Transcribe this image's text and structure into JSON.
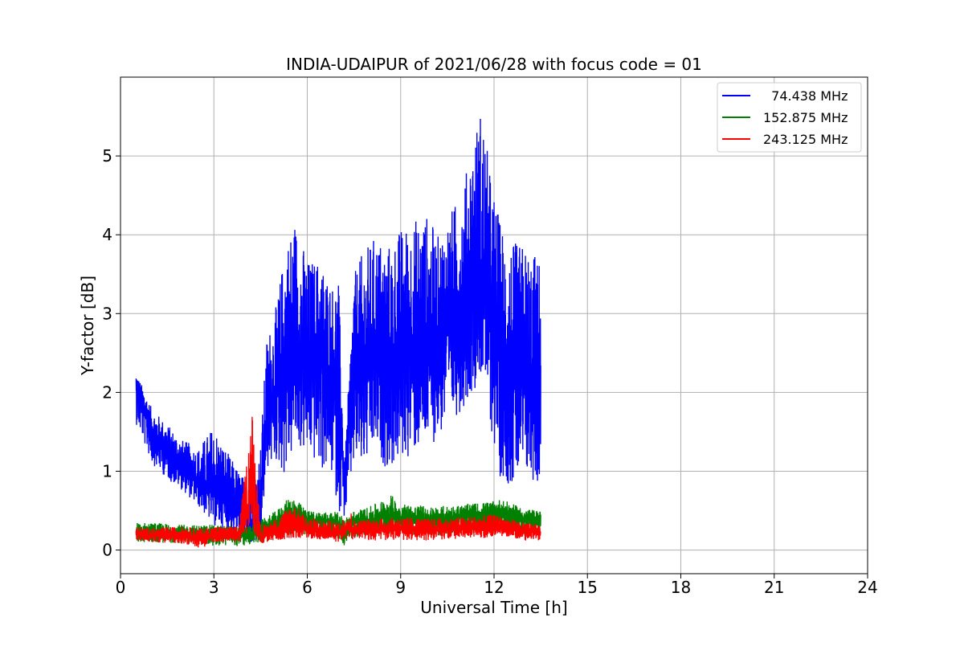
{
  "chart_data": {
    "type": "line",
    "title": "INDIA-UDAIPUR of 2021/06/28 with focus code = 01",
    "xlabel": "Universal Time [h]",
    "ylabel": "Y-factor [dB]",
    "xlim": [
      0,
      24
    ],
    "ylim": [
      -0.3,
      6.0
    ],
    "xticks": [
      0,
      3,
      6,
      9,
      12,
      15,
      18,
      21,
      24
    ],
    "yticks": [
      0,
      1,
      2,
      3,
      4,
      5
    ],
    "grid": true,
    "legend_position": "top-right",
    "series": [
      {
        "name": "  74.438 MHz",
        "color": "#0000ff",
        "x": [
          0.5,
          0.8,
          1.0,
          1.5,
          2.0,
          2.5,
          3.0,
          3.5,
          4.0,
          4.3,
          4.5,
          4.7,
          5.0,
          5.3,
          5.6,
          6.0,
          6.4,
          6.8,
          7.0,
          7.2,
          7.5,
          7.8,
          8.2,
          8.6,
          9.0,
          9.4,
          9.8,
          10.2,
          10.6,
          11.0,
          11.3,
          11.6,
          11.9,
          12.2,
          12.6,
          13.0,
          13.5
        ],
        "y": [
          2.1,
          1.75,
          1.5,
          1.25,
          1.05,
          0.85,
          0.75,
          0.6,
          0.45,
          0.35,
          0.4,
          1.8,
          2.0,
          2.4,
          2.5,
          2.3,
          2.5,
          2.2,
          2.1,
          0.8,
          2.4,
          2.3,
          2.6,
          2.2,
          2.5,
          2.6,
          2.6,
          2.6,
          2.9,
          3.0,
          3.4,
          3.5,
          3.2,
          2.4,
          2.2,
          2.1,
          2.0
        ],
        "y_low": [
          1.6,
          1.3,
          1.1,
          0.9,
          0.75,
          0.55,
          0.3,
          0.25,
          0.1,
          0.05,
          0.15,
          1.0,
          1.1,
          0.9,
          1.3,
          1.2,
          1.0,
          0.9,
          0.5,
          0.4,
          1.0,
          1.0,
          1.2,
          1.0,
          1.1,
          1.2,
          1.3,
          1.4,
          1.6,
          1.8,
          2.0,
          2.2,
          1.5,
          0.9,
          0.8,
          0.9,
          0.8
        ],
        "y_high": [
          2.25,
          2.0,
          1.8,
          1.6,
          1.4,
          1.3,
          1.6,
          1.2,
          0.9,
          1.0,
          1.4,
          2.7,
          3.1,
          3.9,
          4.25,
          3.7,
          3.7,
          3.4,
          3.5,
          1.1,
          3.5,
          3.8,
          4.0,
          3.9,
          4.1,
          4.2,
          4.3,
          4.0,
          4.3,
          4.6,
          5.2,
          5.7,
          4.7,
          4.2,
          3.9,
          3.9,
          3.7
        ]
      },
      {
        "name": "152.875 MHz",
        "color": "#008000",
        "x": [
          0.5,
          1.0,
          2.0,
          3.0,
          4.0,
          4.3,
          4.6,
          5.0,
          5.5,
          6.0,
          7.0,
          7.2,
          7.5,
          8.0,
          8.7,
          9.0,
          10.0,
          11.0,
          12.0,
          12.2,
          13.0,
          13.5
        ],
        "y": [
          0.22,
          0.22,
          0.2,
          0.2,
          0.2,
          0.22,
          0.25,
          0.35,
          0.45,
          0.38,
          0.35,
          0.28,
          0.35,
          0.38,
          0.45,
          0.4,
          0.38,
          0.42,
          0.45,
          0.48,
          0.4,
          0.38
        ],
        "y_low": [
          0.1,
          0.1,
          0.08,
          0.05,
          0.05,
          0.08,
          0.1,
          0.15,
          0.2,
          0.18,
          0.15,
          0.05,
          0.15,
          0.18,
          0.2,
          0.18,
          0.18,
          0.2,
          0.22,
          0.25,
          0.2,
          0.2
        ],
        "y_high": [
          0.35,
          0.35,
          0.32,
          0.32,
          0.3,
          0.35,
          0.4,
          0.5,
          0.7,
          0.5,
          0.48,
          0.4,
          0.5,
          0.55,
          0.7,
          0.6,
          0.55,
          0.58,
          0.62,
          0.65,
          0.52,
          0.5
        ]
      },
      {
        "name": "243.125 MHz",
        "color": "#ff0000",
        "x": [
          0.5,
          1.0,
          2.0,
          2.6,
          3.0,
          3.8,
          4.1,
          4.2,
          4.3,
          4.5,
          5.0,
          5.5,
          6.0,
          7.0,
          7.4,
          7.5,
          8.0,
          9.0,
          10.0,
          11.0,
          12.0,
          12.3,
          13.0,
          13.5
        ],
        "y": [
          0.2,
          0.18,
          0.2,
          0.15,
          0.2,
          0.2,
          0.5,
          0.9,
          0.6,
          0.15,
          0.25,
          0.35,
          0.25,
          0.22,
          0.3,
          0.25,
          0.25,
          0.28,
          0.25,
          0.28,
          0.3,
          0.3,
          0.25,
          0.22
        ],
        "y_low": [
          0.12,
          0.1,
          0.08,
          0.02,
          0.1,
          0.1,
          0.2,
          0.4,
          0.2,
          0.08,
          0.12,
          0.15,
          0.15,
          0.1,
          0.15,
          0.12,
          0.12,
          0.12,
          0.12,
          0.15,
          0.15,
          0.18,
          0.12,
          0.12
        ],
        "y_high": [
          0.3,
          0.28,
          0.3,
          0.28,
          0.3,
          0.3,
          1.3,
          1.92,
          1.5,
          0.3,
          0.4,
          0.6,
          0.42,
          0.35,
          0.5,
          0.38,
          0.4,
          0.42,
          0.4,
          0.42,
          0.45,
          0.42,
          0.35,
          0.32
        ]
      }
    ]
  }
}
